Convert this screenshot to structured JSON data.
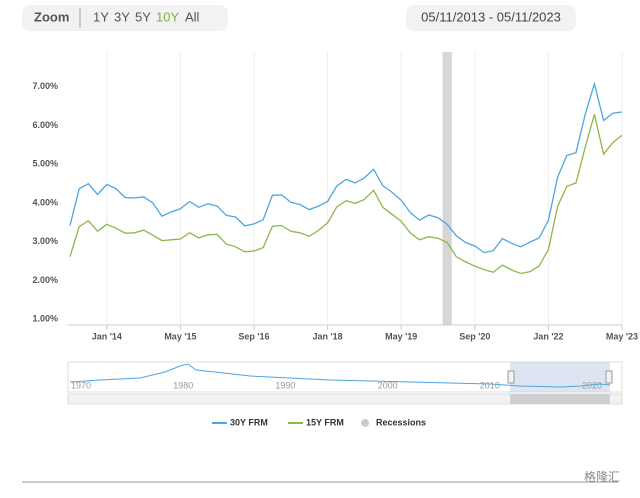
{
  "toolbar": {
    "zoom_label": "Zoom",
    "buttons": [
      "1Y",
      "3Y",
      "5Y",
      "10Y",
      "All"
    ],
    "active": "10Y",
    "date_range": "05/11/2013 - 05/11/2023"
  },
  "chart_data": {
    "type": "line",
    "x": [
      "2013-05",
      "2013-07",
      "2013-09",
      "2013-11",
      "2014-01",
      "2014-03",
      "2014-05",
      "2014-07",
      "2014-09",
      "2014-11",
      "2015-01",
      "2015-03",
      "2015-05",
      "2015-07",
      "2015-09",
      "2015-11",
      "2016-01",
      "2016-03",
      "2016-05",
      "2016-07",
      "2016-09",
      "2016-11",
      "2017-01",
      "2017-03",
      "2017-05",
      "2017-07",
      "2017-09",
      "2017-11",
      "2018-01",
      "2018-03",
      "2018-05",
      "2018-07",
      "2018-09",
      "2018-11",
      "2019-01",
      "2019-03",
      "2019-05",
      "2019-07",
      "2019-09",
      "2019-11",
      "2020-01",
      "2020-03",
      "2020-05",
      "2020-07",
      "2020-09",
      "2020-11",
      "2021-01",
      "2021-03",
      "2021-05",
      "2021-07",
      "2021-09",
      "2021-11",
      "2022-01",
      "2022-03",
      "2022-05",
      "2022-07",
      "2022-09",
      "2022-11",
      "2023-01",
      "2023-03",
      "2023-05"
    ],
    "series": [
      {
        "name": "30Y FRM",
        "color": "#4da6e0",
        "values": [
          3.42,
          4.37,
          4.5,
          4.22,
          4.48,
          4.37,
          4.14,
          4.13,
          4.16,
          4.0,
          3.66,
          3.77,
          3.85,
          4.04,
          3.89,
          3.98,
          3.92,
          3.68,
          3.64,
          3.41,
          3.46,
          3.57,
          4.2,
          4.21,
          4.02,
          3.96,
          3.83,
          3.92,
          4.04,
          4.44,
          4.61,
          4.52,
          4.65,
          4.87,
          4.45,
          4.28,
          4.07,
          3.75,
          3.56,
          3.69,
          3.62,
          3.45,
          3.15,
          2.98,
          2.89,
          2.72,
          2.77,
          3.08,
          2.96,
          2.87,
          2.99,
          3.1,
          3.55,
          4.67,
          5.23,
          5.3,
          6.29,
          7.08,
          6.13,
          6.32,
          6.35
        ]
      },
      {
        "name": "15Y FRM",
        "color": "#8cb84a",
        "values": [
          2.61,
          3.39,
          3.54,
          3.27,
          3.45,
          3.35,
          3.22,
          3.23,
          3.3,
          3.17,
          3.03,
          3.05,
          3.07,
          3.23,
          3.1,
          3.18,
          3.19,
          2.94,
          2.87,
          2.74,
          2.76,
          2.85,
          3.4,
          3.42,
          3.27,
          3.23,
          3.14,
          3.29,
          3.49,
          3.9,
          4.06,
          3.99,
          4.09,
          4.33,
          3.89,
          3.71,
          3.53,
          3.22,
          3.05,
          3.13,
          3.09,
          2.98,
          2.61,
          2.48,
          2.37,
          2.28,
          2.21,
          2.4,
          2.27,
          2.18,
          2.23,
          2.38,
          2.8,
          3.91,
          4.43,
          4.52,
          5.44,
          6.29,
          5.26,
          5.56,
          5.75
        ]
      }
    ],
    "recession": {
      "name": "Recessions",
      "color": "#cccccc",
      "range": [
        "2020-02",
        "2020-04"
      ]
    },
    "xlim": [
      "2013-05",
      "2023-05"
    ],
    "xticks": [
      {
        "value": "2014-01",
        "label": "Jan '14"
      },
      {
        "value": "2015-05",
        "label": "May '15"
      },
      {
        "value": "2016-09",
        "label": "Sep '16"
      },
      {
        "value": "2018-01",
        "label": "Jan '18"
      },
      {
        "value": "2019-05",
        "label": "May '19"
      },
      {
        "value": "2020-09",
        "label": "Sep '20"
      },
      {
        "value": "2022-01",
        "label": "Jan '22"
      },
      {
        "value": "2023-05",
        "label": "May '23"
      }
    ],
    "ylim": [
      0.85,
      7.9
    ],
    "yticks": [
      {
        "value": 1,
        "label": "1.00%"
      },
      {
        "value": 2,
        "label": "2.00%"
      },
      {
        "value": 3,
        "label": "3.00%"
      },
      {
        "value": 4,
        "label": "4.00%"
      },
      {
        "value": 5,
        "label": "5.00%"
      },
      {
        "value": 6,
        "label": "6.00%"
      },
      {
        "value": 7,
        "label": "7.00%"
      }
    ],
    "grid": "x"
  },
  "navigator": {
    "labels": [
      "1970",
      "1980",
      "1990",
      "2000",
      "2010",
      "2020"
    ]
  },
  "watermark": "格隆汇"
}
